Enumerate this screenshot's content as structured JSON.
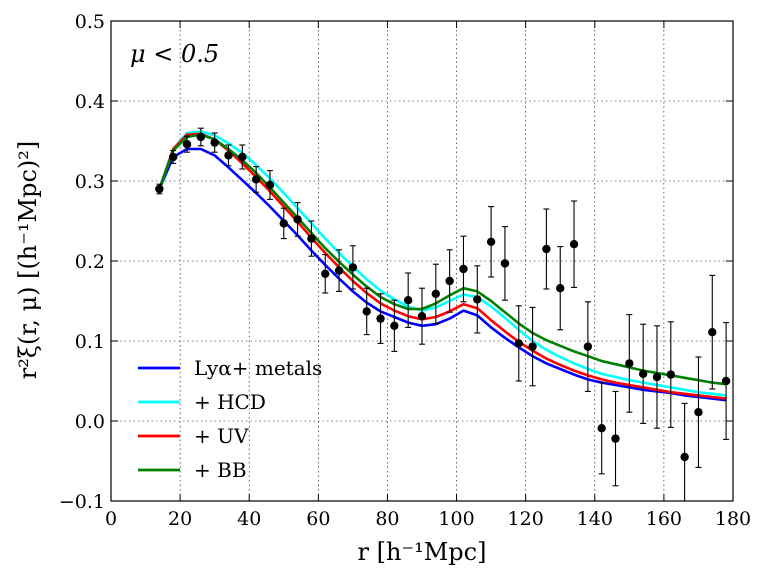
{
  "chart_data": {
    "type": "line",
    "annotation": "μ < 0.5",
    "xlabel": "r [h⁻¹Mpc]",
    "ylabel": "r²ξ(r, μ) [(h⁻¹Mpc)²]",
    "xlim": [
      0,
      180
    ],
    "ylim": [
      -0.1,
      0.5
    ],
    "xticks": [
      0,
      20,
      40,
      60,
      80,
      100,
      120,
      140,
      160,
      180
    ],
    "yticks": [
      -0.1,
      0.0,
      0.1,
      0.2,
      0.3,
      0.4,
      0.5
    ],
    "xtick_labels": [
      "0",
      "20",
      "40",
      "60",
      "80",
      "100",
      "120",
      "140",
      "160",
      "180"
    ],
    "ytick_labels": [
      "−0.1",
      "0.0",
      "0.1",
      "0.2",
      "0.3",
      "0.4",
      "0.5"
    ],
    "grid": true,
    "legend_position": "lower-left",
    "series": [
      {
        "name": "Lyα+ metals",
        "color": "#0000ff",
        "x": [
          14,
          18,
          22,
          26,
          30,
          34,
          38,
          42,
          46,
          50,
          54,
          58,
          62,
          66,
          70,
          74,
          78,
          82,
          86,
          90,
          94,
          98,
          102,
          106,
          110,
          114,
          118,
          122,
          126,
          130,
          134,
          138,
          142,
          146,
          150,
          154,
          158,
          162,
          166,
          170,
          174,
          178
        ],
        "y": [
          0.29,
          0.33,
          0.34,
          0.34,
          0.332,
          0.317,
          0.301,
          0.285,
          0.268,
          0.25,
          0.232,
          0.213,
          0.195,
          0.178,
          0.162,
          0.148,
          0.137,
          0.13,
          0.123,
          0.119,
          0.121,
          0.128,
          0.138,
          0.132,
          0.117,
          0.104,
          0.092,
          0.081,
          0.072,
          0.065,
          0.058,
          0.052,
          0.048,
          0.045,
          0.042,
          0.039,
          0.037,
          0.035,
          0.032,
          0.03,
          0.028,
          0.026
        ]
      },
      {
        "name": "+ HCD",
        "color": "#00ffff",
        "x": [
          14,
          18,
          22,
          26,
          30,
          34,
          38,
          42,
          46,
          50,
          54,
          58,
          62,
          66,
          70,
          74,
          78,
          82,
          86,
          90,
          94,
          98,
          102,
          106,
          110,
          114,
          118,
          122,
          126,
          130,
          134,
          138,
          142,
          146,
          150,
          154,
          158,
          162,
          166,
          170,
          174,
          178
        ],
        "y": [
          0.29,
          0.34,
          0.36,
          0.362,
          0.357,
          0.347,
          0.335,
          0.32,
          0.303,
          0.285,
          0.266,
          0.247,
          0.228,
          0.21,
          0.193,
          0.177,
          0.163,
          0.152,
          0.143,
          0.138,
          0.142,
          0.15,
          0.158,
          0.155,
          0.143,
          0.129,
          0.114,
          0.1,
          0.089,
          0.08,
          0.072,
          0.065,
          0.059,
          0.055,
          0.051,
          0.048,
          0.045,
          0.042,
          0.039,
          0.036,
          0.034,
          0.032
        ]
      },
      {
        "name": "+ UV",
        "color": "#ff0000",
        "x": [
          14,
          18,
          22,
          26,
          30,
          34,
          38,
          42,
          46,
          50,
          54,
          58,
          62,
          66,
          70,
          74,
          78,
          82,
          86,
          90,
          94,
          98,
          102,
          106,
          110,
          114,
          118,
          122,
          126,
          130,
          134,
          138,
          142,
          146,
          150,
          154,
          158,
          162,
          166,
          170,
          174,
          178
        ],
        "y": [
          0.29,
          0.34,
          0.358,
          0.359,
          0.352,
          0.338,
          0.322,
          0.305,
          0.287,
          0.268,
          0.249,
          0.229,
          0.21,
          0.192,
          0.175,
          0.16,
          0.147,
          0.138,
          0.131,
          0.127,
          0.13,
          0.137,
          0.146,
          0.141,
          0.126,
          0.112,
          0.099,
          0.088,
          0.078,
          0.07,
          0.063,
          0.057,
          0.052,
          0.048,
          0.045,
          0.042,
          0.039,
          0.036,
          0.034,
          0.032,
          0.03,
          0.028
        ]
      },
      {
        "name": "+ BB",
        "color": "#008000",
        "x": [
          14,
          18,
          22,
          26,
          30,
          34,
          38,
          42,
          46,
          50,
          54,
          58,
          62,
          66,
          70,
          74,
          78,
          82,
          86,
          90,
          94,
          98,
          102,
          106,
          110,
          114,
          118,
          122,
          126,
          130,
          134,
          138,
          142,
          146,
          150,
          154,
          158,
          162,
          166,
          170,
          174,
          178
        ],
        "y": [
          0.29,
          0.338,
          0.355,
          0.358,
          0.352,
          0.34,
          0.326,
          0.31,
          0.292,
          0.273,
          0.254,
          0.235,
          0.216,
          0.199,
          0.183,
          0.168,
          0.155,
          0.146,
          0.14,
          0.14,
          0.147,
          0.157,
          0.166,
          0.162,
          0.15,
          0.136,
          0.122,
          0.11,
          0.101,
          0.094,
          0.087,
          0.081,
          0.075,
          0.071,
          0.067,
          0.063,
          0.06,
          0.057,
          0.054,
          0.051,
          0.048,
          0.046
        ]
      }
    ],
    "data_points": {
      "color": "#000000",
      "x": [
        14,
        18,
        22,
        26,
        30,
        34,
        38,
        42,
        46,
        50,
        54,
        58,
        62,
        66,
        70,
        74,
        78,
        82,
        86,
        90,
        94,
        98,
        102,
        106,
        110,
        114,
        118,
        122,
        126,
        130,
        134,
        138,
        142,
        146,
        150,
        154,
        158,
        162,
        166,
        170,
        174,
        178
      ],
      "y": [
        0.29,
        0.33,
        0.346,
        0.355,
        0.348,
        0.332,
        0.33,
        0.302,
        0.295,
        0.247,
        0.252,
        0.228,
        0.184,
        0.188,
        0.192,
        0.137,
        0.128,
        0.119,
        0.151,
        0.131,
        0.159,
        0.175,
        0.19,
        0.152,
        0.224,
        0.197,
        0.097,
        0.093,
        0.215,
        0.166,
        0.221,
        0.093,
        -0.009,
        -0.022,
        0.072,
        0.059,
        0.055,
        0.058,
        -0.045,
        0.011,
        0.111,
        0.05
      ],
      "yerr": [
        0.006,
        0.008,
        0.01,
        0.011,
        0.012,
        0.013,
        0.015,
        0.016,
        0.018,
        0.019,
        0.021,
        0.022,
        0.024,
        0.026,
        0.027,
        0.029,
        0.031,
        0.032,
        0.034,
        0.035,
        0.037,
        0.039,
        0.041,
        0.042,
        0.044,
        0.046,
        0.047,
        0.049,
        0.05,
        0.052,
        0.054,
        0.056,
        0.057,
        0.059,
        0.061,
        0.062,
        0.064,
        0.066,
        0.067,
        0.069,
        0.071,
        0.073
      ]
    }
  }
}
